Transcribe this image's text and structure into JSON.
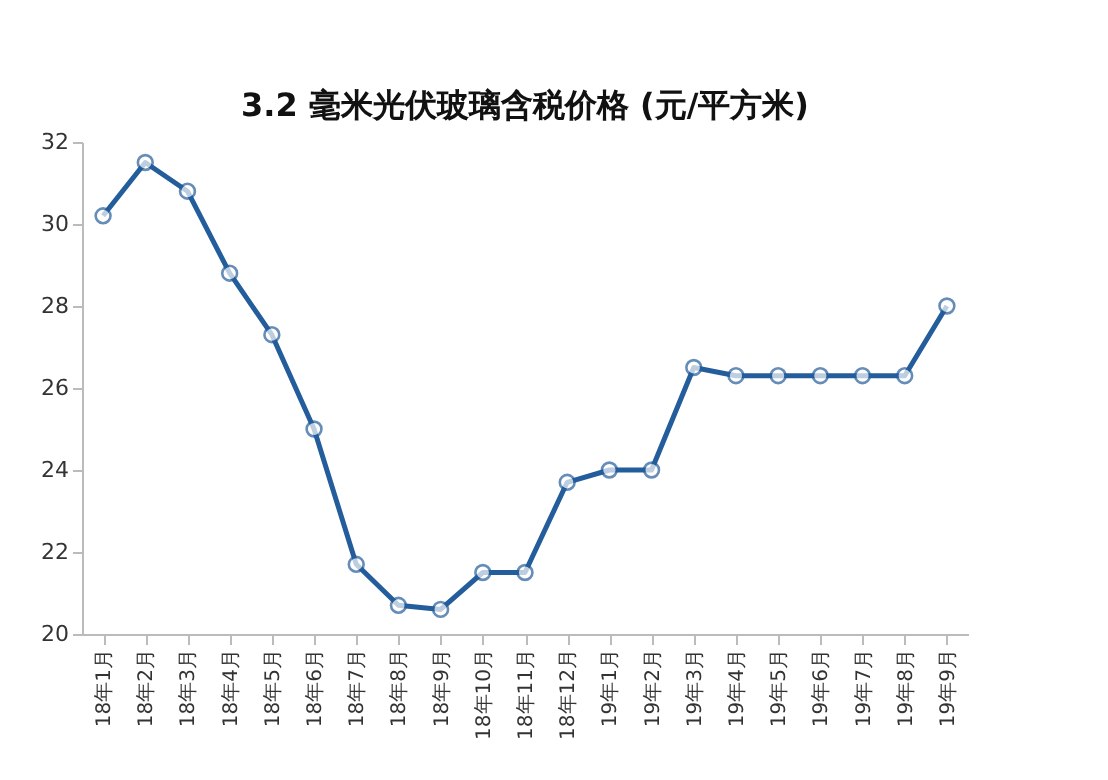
{
  "chart_data": {
    "type": "line",
    "title": "3.2 毫米光伏玻璃含税价格 (元/平方米)",
    "categories": [
      "18年1月",
      "18年2月",
      "18年3月",
      "18年4月",
      "18年5月",
      "18年6月",
      "18年7月",
      "18年8月",
      "18年9月",
      "18年10月",
      "18年11月",
      "18年12月",
      "19年1月",
      "19年2月",
      "19年3月",
      "19年4月",
      "19年5月",
      "19年6月",
      "19年7月",
      "19年8月",
      "19年9月"
    ],
    "series": [
      {
        "color": "#245d9b",
        "values": [
          30.2,
          31.5,
          30.8,
          28.8,
          27.3,
          25.0,
          21.7,
          20.7,
          20.6,
          21.5,
          21.5,
          23.7,
          24.0,
          24.0,
          26.5,
          26.3,
          26.3,
          26.3,
          26.3,
          26.3,
          28.0
        ]
      }
    ],
    "ylim": [
      20,
      32
    ],
    "yticks": [
      20,
      22,
      24,
      26,
      28,
      30,
      32
    ],
    "grid": false,
    "legend": false,
    "marker": "circle",
    "line_style": "solid"
  }
}
